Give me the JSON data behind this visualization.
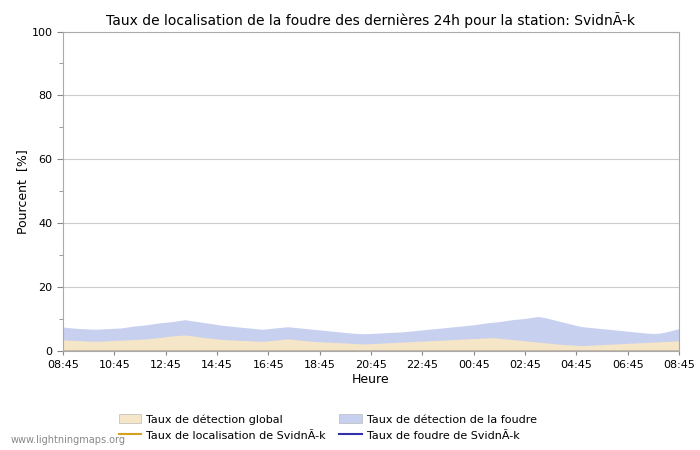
{
  "title": "Taux de localisation de la foudre des dernières 24h pour la station: SvidnÃ-k",
  "xlabel": "Heure",
  "ylabel": "Pourcent  [%]",
  "xtick_labels": [
    "08:45",
    "10:45",
    "12:45",
    "14:45",
    "16:45",
    "18:45",
    "20:45",
    "22:45",
    "00:45",
    "02:45",
    "04:45",
    "06:45",
    "08:45"
  ],
  "ylim": [
    0,
    100
  ],
  "yticks_major": [
    0,
    20,
    40,
    60,
    80,
    100
  ],
  "yticks_minor": [
    10,
    30,
    50,
    70,
    90
  ],
  "color_fill_global": "#f5e6c8",
  "color_fill_lightning": "#c8d0f0",
  "color_line_localisation": "#d4a020",
  "color_line_foudre": "#3030b0",
  "bg_color": "#ffffff",
  "grid_color": "#cccccc",
  "watermark": "www.lightningmaps.org",
  "legend_labels": [
    "Taux de détection global",
    "Taux de localisation de SvidnÃ-k",
    "Taux de détection de la foudre",
    "Taux de foudre de SvidnÃ-k"
  ],
  "n_points": 97,
  "fill_global_values": [
    3.5,
    3.4,
    3.3,
    3.2,
    3.1,
    3.0,
    3.1,
    3.2,
    3.3,
    3.4,
    3.5,
    3.6,
    3.7,
    3.8,
    4.0,
    4.2,
    4.5,
    4.7,
    4.9,
    5.0,
    4.8,
    4.5,
    4.2,
    4.0,
    3.8,
    3.6,
    3.5,
    3.4,
    3.3,
    3.2,
    3.1,
    3.0,
    3.2,
    3.4,
    3.6,
    3.8,
    3.6,
    3.4,
    3.2,
    3.0,
    2.9,
    2.8,
    2.7,
    2.6,
    2.5,
    2.4,
    2.3,
    2.2,
    2.3,
    2.4,
    2.5,
    2.6,
    2.7,
    2.8,
    2.9,
    3.0,
    3.1,
    3.2,
    3.3,
    3.4,
    3.5,
    3.6,
    3.7,
    3.8,
    3.9,
    4.0,
    4.1,
    4.2,
    4.0,
    3.8,
    3.6,
    3.4,
    3.2,
    3.0,
    2.8,
    2.6,
    2.4,
    2.2,
    2.0,
    1.9,
    1.8,
    1.7,
    1.8,
    1.9,
    2.0,
    2.1,
    2.2,
    2.3,
    2.4,
    2.5,
    2.6,
    2.7,
    2.8,
    2.9,
    3.0,
    3.1,
    3.2
  ],
  "fill_lightning_values": [
    7.5,
    7.3,
    7.1,
    7.0,
    6.9,
    6.8,
    6.9,
    7.0,
    7.1,
    7.2,
    7.5,
    7.8,
    8.0,
    8.2,
    8.5,
    8.8,
    9.0,
    9.2,
    9.5,
    9.8,
    9.5,
    9.2,
    8.9,
    8.6,
    8.3,
    8.0,
    7.8,
    7.6,
    7.4,
    7.2,
    7.0,
    6.8,
    7.0,
    7.2,
    7.4,
    7.6,
    7.4,
    7.2,
    7.0,
    6.8,
    6.6,
    6.4,
    6.2,
    6.0,
    5.8,
    5.6,
    5.5,
    5.4,
    5.5,
    5.6,
    5.7,
    5.8,
    5.9,
    6.0,
    6.2,
    6.4,
    6.6,
    6.8,
    7.0,
    7.2,
    7.4,
    7.6,
    7.8,
    8.0,
    8.2,
    8.5,
    8.8,
    9.0,
    9.2,
    9.5,
    9.8,
    10.0,
    10.2,
    10.5,
    10.8,
    10.5,
    10.0,
    9.5,
    9.0,
    8.5,
    8.0,
    7.6,
    7.4,
    7.2,
    7.0,
    6.8,
    6.6,
    6.4,
    6.2,
    6.0,
    5.8,
    5.6,
    5.5,
    5.6,
    6.0,
    6.5,
    7.0
  ],
  "line_localisation_values": [
    0.08,
    0.08,
    0.08,
    0.08,
    0.08,
    0.08,
    0.08,
    0.08,
    0.08,
    0.08,
    0.08,
    0.08,
    0.08,
    0.08,
    0.08,
    0.08,
    0.08,
    0.08,
    0.08,
    0.08,
    0.08,
    0.08,
    0.08,
    0.08,
    0.08,
    0.08,
    0.08,
    0.08,
    0.08,
    0.08,
    0.08,
    0.08,
    0.08,
    0.08,
    0.08,
    0.08,
    0.08,
    0.08,
    0.08,
    0.08,
    0.08,
    0.08,
    0.08,
    0.08,
    0.08,
    0.08,
    0.08,
    0.08,
    0.08,
    0.08,
    0.08,
    0.08,
    0.08,
    0.08,
    0.08,
    0.08,
    0.08,
    0.08,
    0.08,
    0.08,
    0.08,
    0.08,
    0.08,
    0.08,
    0.08,
    0.08,
    0.08,
    0.08,
    0.08,
    0.08,
    0.08,
    0.08,
    0.08,
    0.08,
    0.08,
    0.08,
    0.08,
    0.08,
    0.08,
    0.08,
    0.08,
    0.08,
    0.08,
    0.08,
    0.08,
    0.08,
    0.08,
    0.08,
    0.08,
    0.08,
    0.08,
    0.08,
    0.08,
    0.08,
    0.08,
    0.08,
    0.08
  ],
  "line_foudre_values": [
    0.04,
    0.04,
    0.04,
    0.04,
    0.04,
    0.04,
    0.04,
    0.04,
    0.04,
    0.04,
    0.04,
    0.04,
    0.04,
    0.04,
    0.04,
    0.04,
    0.04,
    0.04,
    0.04,
    0.04,
    0.04,
    0.04,
    0.04,
    0.04,
    0.04,
    0.04,
    0.04,
    0.04,
    0.04,
    0.04,
    0.04,
    0.04,
    0.04,
    0.04,
    0.04,
    0.04,
    0.04,
    0.04,
    0.04,
    0.04,
    0.04,
    0.04,
    0.04,
    0.04,
    0.04,
    0.04,
    0.04,
    0.04,
    0.04,
    0.04,
    0.04,
    0.04,
    0.04,
    0.04,
    0.04,
    0.04,
    0.04,
    0.04,
    0.04,
    0.04,
    0.04,
    0.04,
    0.04,
    0.04,
    0.04,
    0.04,
    0.04,
    0.04,
    0.04,
    0.04,
    0.04,
    0.04,
    0.04,
    0.04,
    0.04,
    0.04,
    0.04,
    0.04,
    0.04,
    0.04,
    0.04,
    0.04,
    0.04,
    0.04,
    0.04,
    0.04,
    0.04,
    0.04,
    0.04,
    0.04,
    0.04,
    0.04,
    0.04,
    0.04,
    0.04,
    0.04,
    0.04
  ]
}
